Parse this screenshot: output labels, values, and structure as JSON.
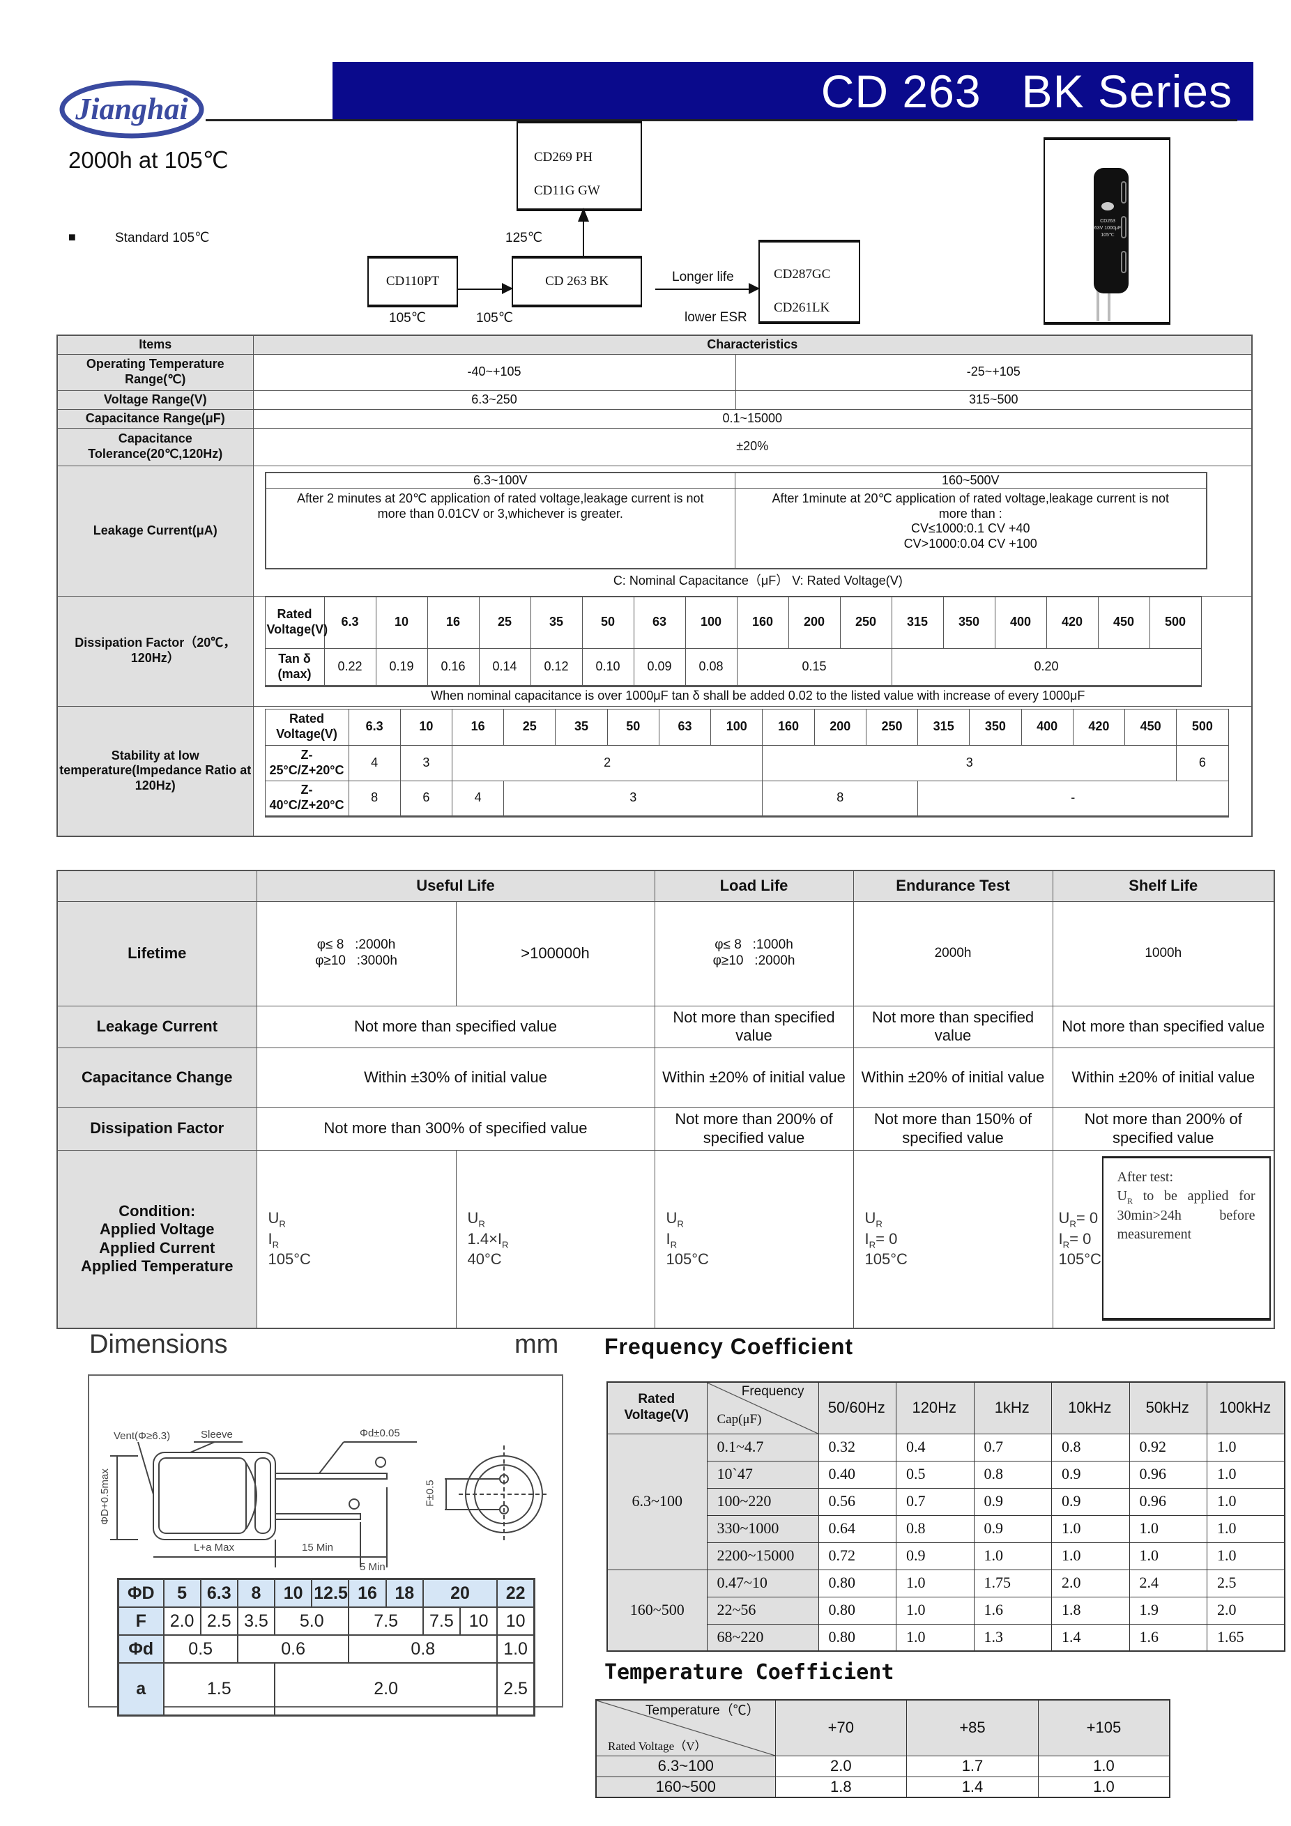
{
  "header": {
    "logo_text": "Jianghai",
    "series_title": "CD 263   BK Series",
    "subtitle": "2000h at 105℃",
    "brand_color": "#0a0a8c"
  },
  "flow": {
    "bullet": "■",
    "standard": "Standard 105℃",
    "box_top": [
      "CD269 PH",
      "CD11G GW"
    ],
    "label_125": "125℃",
    "box_left": "CD110PT",
    "box_center": "CD 263 BK",
    "box_right": [
      "CD287GC",
      "CD261LK"
    ],
    "longer_life": "Longer life",
    "lower_esr": "lower ESR",
    "label_105a": "105℃",
    "label_105b": "105℃"
  },
  "product_photo": {
    "print": [
      "CD263",
      "63V 1000μF",
      "105℃"
    ]
  },
  "spec": {
    "head_items": "Items",
    "head_char": "Characteristics",
    "op_temp": {
      "label": "Operating Temperature Range(℃)",
      "v1": "-40~+105",
      "v2": "-25~+105"
    },
    "voltage": {
      "label": "Voltage Range(V)",
      "v1": "6.3~250",
      "v2": "315~500"
    },
    "cap_range": {
      "label": "Capacitance Range(μF)",
      "v": "0.1~15000"
    },
    "tolerance": {
      "label": "Capacitance Tolerance(20℃,120Hz)",
      "v": "±20%"
    },
    "leakage": {
      "label": "Leakage Current(μA)",
      "h1": "6.3~100V",
      "h2": "160~500V",
      "t1": "After 2 minutes at 20℃  application of rated voltage,leakage current is not more than 0.01CV or 3,whichever is greater.",
      "t2a": "After 1minute at 20℃  application of rated voltage,leakage current is not more than :",
      "t2b": "CV≤1000:0.1 CV +40",
      "t2c": "CV>1000:0.04 CV +100",
      "note": "C: Nominal Capacitance（μF）  V: Rated Voltage(V)"
    },
    "dissipation": {
      "label": "Dissipation Factor（20℃，120Hz）",
      "rv_label": "Rated Voltage(V)",
      "tan_label": "Tan δ (max)",
      "voltages": [
        "6.3",
        "10",
        "16",
        "25",
        "35",
        "50",
        "63",
        "100",
        "160",
        "200",
        "250",
        "315",
        "350",
        "400",
        "420",
        "450",
        "500"
      ],
      "tan": [
        "0.22",
        "0.19",
        "0.16",
        "0.14",
        "0.12",
        "0.10",
        "0.09",
        "0.08",
        "0.15",
        "0.20"
      ],
      "note": "When nominal capacitance is over 1000μF tan δ  shall be added 0.02 to the listed value with increase of every 1000μF"
    },
    "stability": {
      "label": "Stability at low temperature(Impedance Ratio at 120Hz)",
      "rv_label": "Rated Voltage(V)",
      "voltages": [
        "6.3",
        "10",
        "16",
        "25",
        "35",
        "50",
        "63",
        "100",
        "160",
        "200",
        "250",
        "315",
        "350",
        "400",
        "420",
        "450",
        "500"
      ],
      "z25_label": "Z-25°C/Z+20°C",
      "z25": [
        "4",
        "3",
        "2",
        "3",
        "6"
      ],
      "z40_label": "Z-40°C/Z+20°C",
      "z40": [
        "8",
        "6",
        "4",
        "3",
        "8",
        "-"
      ]
    }
  },
  "life": {
    "headers": [
      "Useful Life",
      "Load Life",
      "Endurance Test",
      "Shelf Life"
    ],
    "rows": {
      "lifetime": {
        "label": "Lifetime",
        "useful_a1": "φ≤ 8   :2000h",
        "useful_a2": "φ≥10   :3000h",
        "useful_b": ">100000h",
        "load1": "φ≤ 8   :1000h",
        "load2": "φ≥10   :2000h",
        "endurance": "2000h",
        "shelf": "1000h"
      },
      "leakage": {
        "label": "Leakage Current",
        "useful": "Not more than specified value",
        "load": "Not more than specified value",
        "endurance": "Not more than specified value",
        "shelf": "Not more than specified value"
      },
      "capacitance": {
        "label": "Capacitance Change",
        "useful": "Within  ±30% of initial value",
        "load": "Within  ±20% of initial value",
        "endurance": "Within  ±20% of initial value",
        "shelf": "Within  ±20% of initial value"
      },
      "df": {
        "label": "Dissipation Factor",
        "useful": "Not more than 300% of specified value",
        "load": "Not more than 200% of specified value",
        "endurance": "Not more than 150% of specified value",
        "shelf": "Not more than 200% of specified value"
      },
      "condition": {
        "label": [
          "Condition:",
          "Applied Voltage",
          "Applied Current",
          "Applied Temperature"
        ],
        "c1": {
          "v": "U",
          "vs": "R",
          "i": "I",
          "is": "R",
          "t": "105°C"
        },
        "c2": {
          "v": "U",
          "vs": "R",
          "i": "1.4×I",
          "is": "R",
          "t": "40°C"
        },
        "c3": {
          "v": "U",
          "vs": "R",
          "i": "I",
          "is": "R",
          "t": "105°C"
        },
        "c4": {
          "v": "U",
          "vs": "R",
          "i": "I",
          "is": "R",
          "ieq": "= 0",
          "t": "105°C"
        },
        "c5": {
          "v": "U",
          "vs": "R",
          "veq": "= 0",
          "i": "I",
          "is": "R",
          "ieq": "= 0",
          "t": "105°C"
        },
        "after_test": [
          "After test:",
          "U",
          "R",
          " to be applied for 30min>24h   before measurement"
        ]
      }
    }
  },
  "dimensions": {
    "title": "Dimensions",
    "unit": "mm",
    "drawing_labels": {
      "vent": "Vent(Φ≥6.3)",
      "sleeve": "Sleeve",
      "lead": "Φd±0.05",
      "dia": "ΦD+0.5max",
      "length": "L+a Max",
      "lead_len": "15 Min",
      "lead_diff": "5 Min",
      "pitch": "F±0.5",
      "plus": "+",
      "minus": "−"
    },
    "table": {
      "row_labels": [
        "ΦD",
        "F",
        "Φd",
        "a"
      ],
      "D": [
        "5",
        "6.3",
        "8",
        "10",
        "12.5",
        "16",
        "18",
        "20",
        "22"
      ],
      "F": [
        "2.0",
        "2.5",
        "3.5",
        "5.0",
        "7.5",
        "7.5",
        "10",
        "10"
      ],
      "d": [
        "0.5",
        "0.6",
        "0.8",
        "1.0"
      ],
      "a": [
        "1.5",
        "2.0",
        "2.5"
      ]
    }
  },
  "frequency": {
    "title": "Frequency Coefficient",
    "rv_label": "Rated Voltage(V)",
    "freq_label": "Frequency",
    "cap_label": "Cap(μF)",
    "freqs": [
      "50/60Hz",
      "120Hz",
      "1kHz",
      "10kHz",
      "50kHz",
      "100kHz"
    ],
    "groups": [
      {
        "voltage": "6.3~100",
        "rows": [
          {
            "cap": "0.1~4.7",
            "v": [
              "0.32",
              "0.4",
              "0.7",
              "0.8",
              "0.92",
              "1.0"
            ]
          },
          {
            "cap": "10`47",
            "v": [
              "0.40",
              "0.5",
              "0.8",
              "0.9",
              "0.96",
              "1.0"
            ]
          },
          {
            "cap": "100~220",
            "v": [
              "0.56",
              "0.7",
              "0.9",
              "0.9",
              "0.96",
              "1.0"
            ]
          },
          {
            "cap": "330~1000",
            "v": [
              "0.64",
              "0.8",
              "0.9",
              "1.0",
              "1.0",
              "1.0"
            ]
          },
          {
            "cap": "2200~15000",
            "v": [
              "0.72",
              "0.9",
              "1.0",
              "1.0",
              "1.0",
              "1.0"
            ]
          }
        ]
      },
      {
        "voltage": "160~500",
        "rows": [
          {
            "cap": "0.47~10",
            "v": [
              "0.80",
              "1.0",
              "1.75",
              "2.0",
              "2.4",
              "2.5"
            ]
          },
          {
            "cap": "22~56",
            "v": [
              "0.80",
              "1.0",
              "1.6",
              "1.8",
              "1.9",
              "2.0"
            ]
          },
          {
            "cap": "68~220",
            "v": [
              "0.80",
              "1.0",
              "1.3",
              "1.4",
              "1.6",
              "1.65"
            ]
          }
        ]
      }
    ]
  },
  "temperature": {
    "title": "Temperature Coefficient",
    "temp_label": "Temperature（℃）",
    "rv_label": "Rated Voltage（V）",
    "temps": [
      "+70",
      "+85",
      "+105"
    ],
    "rows": [
      {
        "voltage": "6.3~100",
        "v": [
          "2.0",
          "1.7",
          "1.0"
        ]
      },
      {
        "voltage": "160~500",
        "v": [
          "1.8",
          "1.4",
          "1.0"
        ]
      }
    ]
  }
}
